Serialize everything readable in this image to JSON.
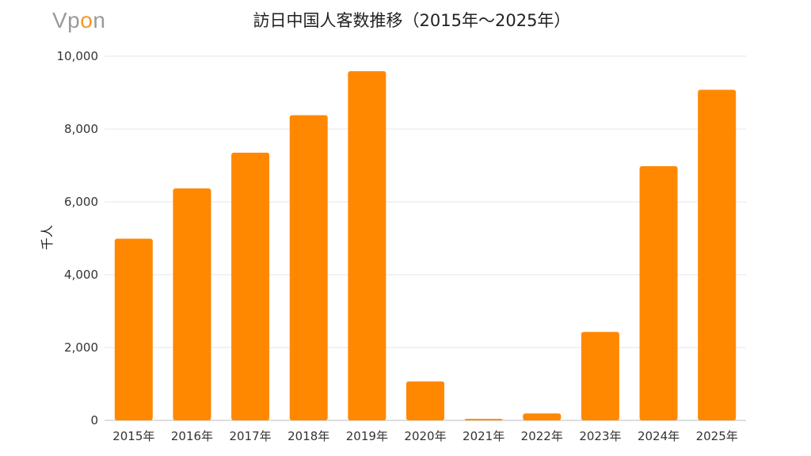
{
  "logo": {
    "pre": "Vp",
    "accent": "o",
    "post": "n"
  },
  "colors": {
    "bar": "#FF8800",
    "grid": "#E6E6E6",
    "logo_gray": "#9A9A9A",
    "logo_accent": "#F39A1E"
  },
  "chart_data": {
    "type": "bar",
    "title": "訪日中国人客数推移（2015年～2025年）",
    "xlabel": "",
    "ylabel": "千人",
    "ylim": [
      0,
      10000
    ],
    "yticks": [
      0,
      2000,
      4000,
      6000,
      8000,
      10000
    ],
    "ytick_labels": [
      "0",
      "2,000",
      "4,000",
      "6,000",
      "8,000",
      "10,000"
    ],
    "grid": true,
    "legend": "none",
    "categories": [
      "2015年",
      "2016年",
      "2017年",
      "2018年",
      "2019年",
      "2020年",
      "2021年",
      "2022年",
      "2023年",
      "2024年",
      "2025年"
    ],
    "values": [
      4990,
      6370,
      7350,
      8380,
      9590,
      1070,
      40,
      190,
      2430,
      6980,
      9080
    ]
  }
}
